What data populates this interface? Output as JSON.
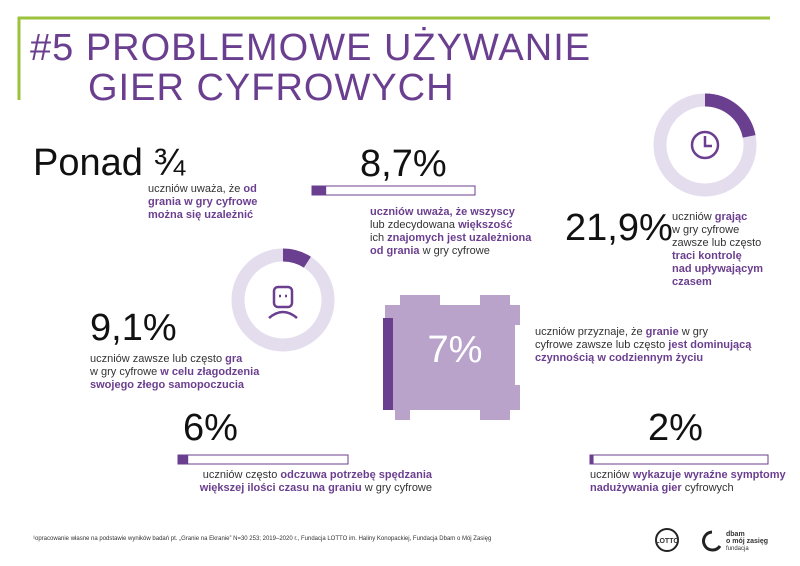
{
  "header": {
    "title": [
      "#5 PROBLEMOWE UŻYWANIE",
      "GIER CYFROWYCH"
    ]
  },
  "colors": {
    "accent": "#6b3f8f",
    "track": "#e4dded",
    "shape": "#b9a3cb",
    "frame": "#9bc23c"
  },
  "stats": [
    {
      "label": "Ponad ¾",
      "description": [
        [
          {
            "text": "uczniów uważa, że "
          },
          {
            "text": "od",
            "strong": true
          }
        ],
        [
          {
            "text": "grania w gry cyfrowe",
            "strong": true
          }
        ],
        [
          {
            "text": "można się uzależnić",
            "strong": true
          }
        ]
      ]
    },
    {
      "value": 8.7,
      "value_label": "8,7%",
      "graphic": "bar",
      "description": [
        [
          {
            "text": "uczniów uważa, że wszyscy",
            "strong": true
          }
        ],
        [
          {
            "text": "lub zdecydowana "
          },
          {
            "text": "większość",
            "strong": true
          }
        ],
        [
          {
            "text": "ich "
          },
          {
            "text": "znajomych jest uzależniona",
            "strong": true
          }
        ],
        [
          {
            "text": "od grania",
            "strong": true
          },
          {
            "text": " w gry cyfrowe"
          }
        ]
      ]
    },
    {
      "value": 21.9,
      "value_label": "21,9%",
      "graphic": "donut",
      "description": [
        [
          {
            "text": "uczniów "
          },
          {
            "text": "grając",
            "strong": true
          }
        ],
        [
          {
            "text": "w gry cyfrowe"
          }
        ],
        [
          {
            "text": "zawsze lub często"
          }
        ],
        [
          {
            "text": "traci kontrolę",
            "strong": true
          }
        ],
        [
          {
            "text": "nad upływającym",
            "strong": true
          }
        ],
        [
          {
            "text": "czasem",
            "strong": true
          }
        ]
      ]
    },
    {
      "value": 9.1,
      "value_label": "9,1%",
      "graphic": "donut",
      "description": [
        [
          {
            "text": "uczniów zawsze lub często "
          },
          {
            "text": "gra",
            "strong": true
          }
        ],
        [
          {
            "text": "w gry cyfrowe "
          },
          {
            "text": "w celu złagodzenia",
            "strong": true
          }
        ],
        [
          {
            "text": "swojego złego samopoczucia",
            "strong": true
          }
        ]
      ]
    },
    {
      "value": 7,
      "value_label": "7%",
      "graphic": "shape",
      "description": [
        [
          {
            "text": "uczniów przyznaje, że "
          },
          {
            "text": "granie",
            "strong": true
          },
          {
            "text": " w gry"
          }
        ],
        [
          {
            "text": "cyfrowe zawsze lub często "
          },
          {
            "text": "jest dominującą",
            "strong": true
          }
        ],
        [
          {
            "text": "czynnością w codziennym życiu",
            "strong": true
          }
        ]
      ]
    },
    {
      "value": 6,
      "value_label": "6%",
      "graphic": "bar",
      "description": [
        [
          {
            "text": "uczniów często "
          },
          {
            "text": "odczuwa potrzebę spędzania",
            "strong": true
          }
        ],
        [
          {
            "text": "większej ilości czasu na graniu",
            "strong": true
          },
          {
            "text": " w gry cyfrowe"
          }
        ]
      ]
    },
    {
      "value": 2,
      "value_label": "2%",
      "graphic": "bar",
      "description": [
        [
          {
            "text": "uczniów "
          },
          {
            "text": "wykazuje wyraźne symptomy",
            "strong": true
          }
        ],
        [
          {
            "text": "nadużywania gier",
            "strong": true
          },
          {
            "text": " cyfrowych"
          }
        ]
      ]
    }
  ],
  "footnote": "¹opracowanie własne na podstawie wyników badań pt. „Granie na Ekranie” N=30 253; 2019–2020 r., Fundacja LOTTO im. Haliny Konopackiej, Fundacja Dbam o Mój Zasięg",
  "logos": [
    "LOTTO",
    "dbam",
    "o mój zasięg",
    "fundacja"
  ]
}
